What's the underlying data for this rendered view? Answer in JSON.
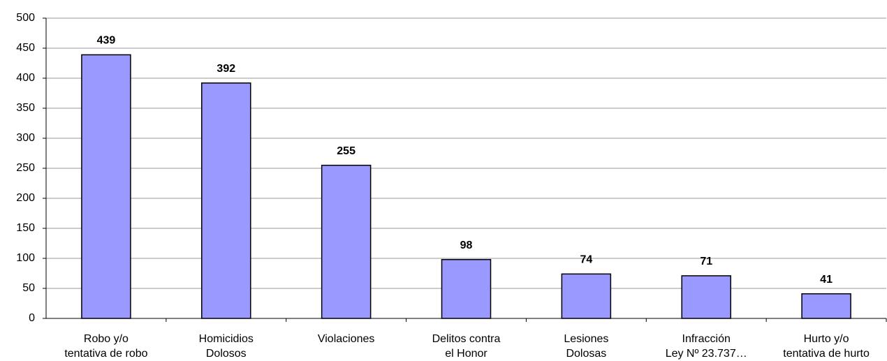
{
  "chart_data": {
    "type": "bar",
    "categories": [
      [
        "Robo y/o",
        "tentativa de robo"
      ],
      [
        "Homicidios",
        "Dolosos"
      ],
      [
        "Violaciones"
      ],
      [
        "Delitos contra",
        "el Honor"
      ],
      [
        "Lesiones",
        "Dolosas"
      ],
      [
        "Infracción",
        "Ley Nº 23.737…"
      ],
      [
        "Hurto y/o",
        "tentativa de hurto"
      ]
    ],
    "values": [
      439,
      392,
      255,
      98,
      74,
      71,
      41
    ],
    "color": "#9999ff",
    "ylim": [
      0,
      500
    ],
    "yticks": [
      0,
      50,
      100,
      150,
      200,
      250,
      300,
      350,
      400,
      450,
      500
    ],
    "grid": true
  }
}
